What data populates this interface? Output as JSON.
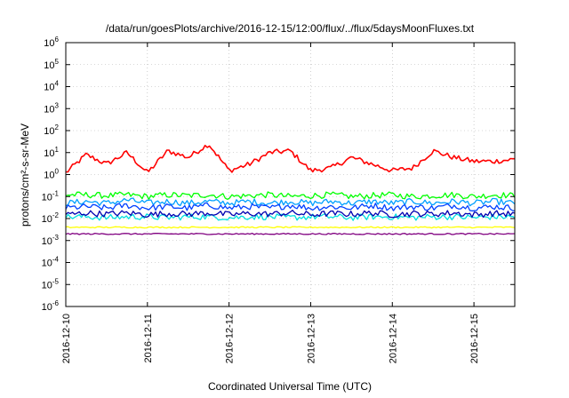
{
  "chart_data": {
    "type": "line",
    "title": "/data/run/goesPlots/archive/2016-12-15/12:00/flux/../flux/5daysMoonFluxes.txt",
    "xlabel": "Coordinated Universal Time (UTC)",
    "ylabel": "protons/cm²-s-sr-MeV",
    "yscale": "log",
    "ylim": [
      1e-06,
      1000000.0
    ],
    "xlim": [
      "2016-12-10 00:00",
      "2016-12-15 12:00"
    ],
    "grid": true,
    "legend": "none",
    "x_ticks": [
      "2016-12-10",
      "2016-12-11",
      "2016-12-12",
      "2016-12-13",
      "2016-12-14",
      "2016-12-15"
    ],
    "y_ticks": [
      {
        "base": "10",
        "exp": "-6"
      },
      {
        "base": "10",
        "exp": "-5"
      },
      {
        "base": "10",
        "exp": "-4"
      },
      {
        "base": "10",
        "exp": "-3"
      },
      {
        "base": "10",
        "exp": "-2"
      },
      {
        "base": "10",
        "exp": "-1"
      },
      {
        "base": "10",
        "exp": "0"
      },
      {
        "base": "10",
        "exp": "1"
      },
      {
        "base": "10",
        "exp": "2"
      },
      {
        "base": "10",
        "exp": "3"
      },
      {
        "base": "10",
        "exp": "4"
      },
      {
        "base": "10",
        "exp": "5"
      },
      {
        "base": "10",
        "exp": "6"
      }
    ],
    "x": [
      "2016-12-10 00:00",
      "2016-12-10 06:00",
      "2016-12-10 12:00",
      "2016-12-10 18:00",
      "2016-12-11 00:00",
      "2016-12-11 06:00",
      "2016-12-11 12:00",
      "2016-12-11 18:00",
      "2016-12-12 00:00",
      "2016-12-12 06:00",
      "2016-12-12 12:00",
      "2016-12-12 18:00",
      "2016-12-13 00:00",
      "2016-12-13 06:00",
      "2016-12-13 12:00",
      "2016-12-13 18:00",
      "2016-12-14 00:00",
      "2016-12-14 06:00",
      "2016-12-14 12:00",
      "2016-12-14 18:00",
      "2016-12-15 00:00",
      "2016-12-15 06:00",
      "2016-12-15 12:00"
    ],
    "series": [
      {
        "color": "#ff0000",
        "values": [
          1.2,
          8,
          3,
          10,
          1.2,
          12,
          6,
          25,
          1.5,
          3,
          10,
          12,
          1.5,
          2,
          6,
          3,
          1.5,
          2,
          12,
          6,
          4,
          4,
          5
        ]
      },
      {
        "color": "#00ff00",
        "values": [
          0.12,
          0.12,
          0.11,
          0.12,
          0.1,
          0.12,
          0.11,
          0.12,
          0.1,
          0.11,
          0.12,
          0.1,
          0.11,
          0.12,
          0.1,
          0.11,
          0.12,
          0.1,
          0.11,
          0.12,
          0.1,
          0.12,
          0.11
        ]
      },
      {
        "color": "#00a0ff",
        "values": [
          0.05,
          0.06,
          0.05,
          0.07,
          0.05,
          0.06,
          0.05,
          0.06,
          0.05,
          0.06,
          0.05,
          0.06,
          0.05,
          0.06,
          0.05,
          0.06,
          0.05,
          0.06,
          0.05,
          0.06,
          0.05,
          0.06,
          0.05
        ]
      },
      {
        "color": "#0040ff",
        "values": [
          0.03,
          0.035,
          0.03,
          0.04,
          0.03,
          0.035,
          0.03,
          0.04,
          0.03,
          0.035,
          0.03,
          0.04,
          0.03,
          0.035,
          0.03,
          0.04,
          0.03,
          0.035,
          0.03,
          0.04,
          0.03,
          0.035,
          0.03
        ]
      },
      {
        "color": "#00e0e0",
        "values": [
          0.012,
          0.012,
          0.011,
          0.012,
          0.012,
          0.011,
          0.012,
          0.012,
          0.011,
          0.012,
          0.012,
          0.011,
          0.012,
          0.012,
          0.011,
          0.012,
          0.012,
          0.011,
          0.012,
          0.012,
          0.011,
          0.012,
          0.012
        ]
      },
      {
        "color": "#0000b0",
        "values": [
          0.015,
          0.018,
          0.016,
          0.018,
          0.015,
          0.017,
          0.016,
          0.018,
          0.015,
          0.017,
          0.016,
          0.018,
          0.015,
          0.017,
          0.016,
          0.018,
          0.015,
          0.017,
          0.016,
          0.018,
          0.015,
          0.017,
          0.016
        ]
      },
      {
        "color": "#ffff00",
        "values": [
          0.004,
          0.004,
          0.004,
          0.004,
          0.004,
          0.004,
          0.004,
          0.004,
          0.004,
          0.004,
          0.004,
          0.004,
          0.004,
          0.004,
          0.004,
          0.004,
          0.004,
          0.004,
          0.004,
          0.004,
          0.004,
          0.004,
          0.004
        ]
      },
      {
        "color": "#800080",
        "values": [
          0.002,
          0.002,
          0.002,
          0.002,
          0.002,
          0.002,
          0.002,
          0.002,
          0.002,
          0.002,
          0.002,
          0.002,
          0.002,
          0.002,
          0.002,
          0.002,
          0.002,
          0.002,
          0.002,
          0.002,
          0.002,
          0.002,
          0.002
        ]
      }
    ]
  }
}
